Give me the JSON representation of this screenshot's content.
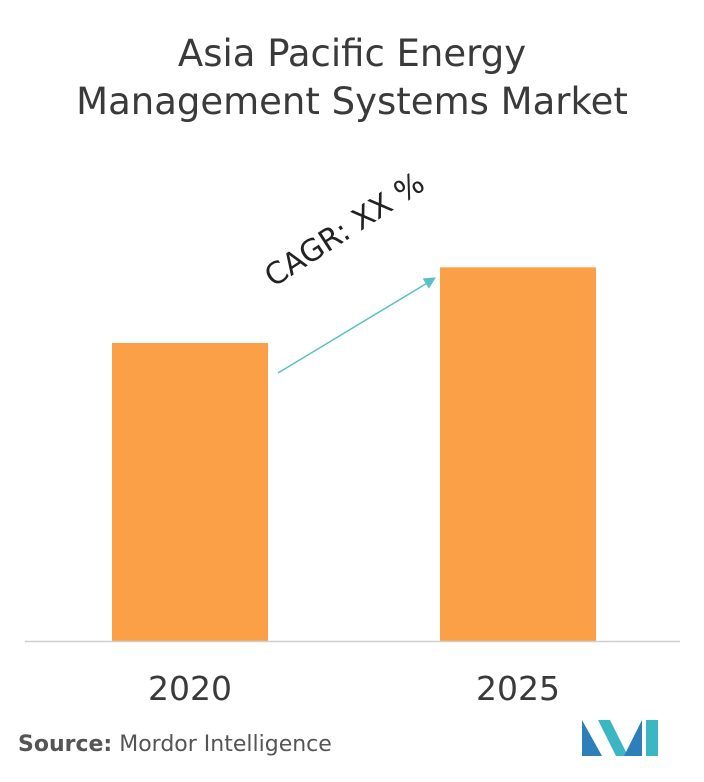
{
  "title": {
    "line1": "Asia Pacific Energy",
    "line2": "Management Systems Market"
  },
  "chart_data": {
    "type": "bar",
    "title": "Asia Pacific Energy Management Systems Market",
    "categories": [
      "2020",
      "2025"
    ],
    "values": [
      63,
      79
    ],
    "ylim": [
      0,
      100
    ],
    "xlabel": "",
    "ylabel": "",
    "grid": false,
    "bar_color": "#FBA047",
    "annotation": {
      "text": "CAGR: XX %",
      "arrow_color": "#5BC0C8"
    }
  },
  "source": {
    "label": "Source:",
    "name": "Mordor Intelligence"
  },
  "logo": {
    "colors": [
      "#2C7FB8",
      "#3BB7C4"
    ]
  }
}
